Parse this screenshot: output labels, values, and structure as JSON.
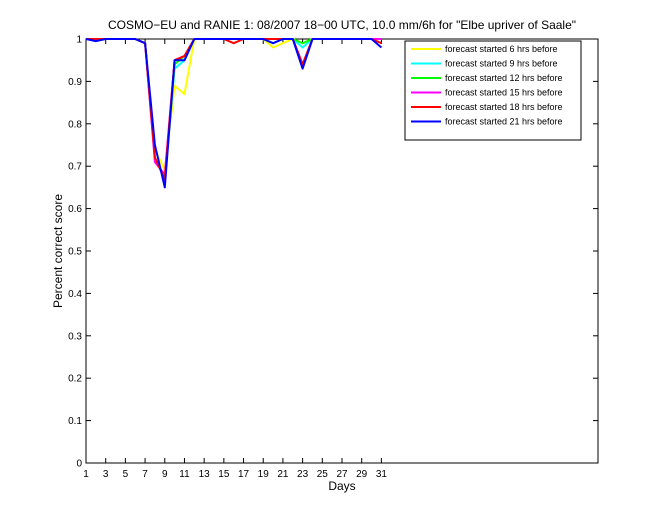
{
  "chart_data": {
    "type": "line",
    "title": "COSMO−EU and RANIE 1: 08/2007 18−00 UTC, 10.0 mm/6h for \"Elbe upriver of Saale\"",
    "xlabel": "Days",
    "ylabel": "Percent correct score",
    "xlim": [
      1,
      53
    ],
    "ylim": [
      0,
      1
    ],
    "xticks": [
      1,
      3,
      5,
      7,
      9,
      11,
      13,
      15,
      17,
      19,
      21,
      23,
      25,
      27,
      29,
      31
    ],
    "yticks": [
      0,
      0.1,
      0.2,
      0.3,
      0.4,
      0.5,
      0.6,
      0.7,
      0.8,
      0.9,
      1
    ],
    "ytick_labels": [
      "0",
      "0.1",
      "0.2",
      "0.3",
      "0.4",
      "0.5",
      "0.6",
      "0.7",
      "0.8",
      "0.9",
      "1"
    ],
    "grid": false,
    "legend_position": "top-right",
    "x": [
      1,
      2,
      3,
      4,
      5,
      6,
      7,
      8,
      9,
      10,
      11,
      12,
      13,
      14,
      15,
      16,
      17,
      18,
      19,
      20,
      21,
      22,
      23,
      24,
      25,
      26,
      27,
      28,
      29,
      30,
      31
    ],
    "series": [
      {
        "name": "forecast started 6 hrs before",
        "color": "#ffff00",
        "values": [
          1,
          1,
          1,
          1,
          1,
          1,
          0.99,
          0.74,
          0.69,
          0.89,
          0.87,
          1,
          1,
          1,
          1,
          1,
          1,
          1,
          1,
          0.98,
          0.99,
          1,
          0.99,
          1,
          1,
          1,
          1,
          1,
          1,
          1,
          1
        ]
      },
      {
        "name": "forecast started 9 hrs before",
        "color": "#00ffff",
        "values": [
          1,
          1,
          1,
          1,
          1,
          1,
          0.99,
          0.72,
          0.67,
          0.93,
          0.95,
          1,
          1,
          1,
          1,
          1,
          1,
          1,
          1,
          0.99,
          1,
          1,
          0.98,
          1,
          1,
          1,
          1,
          1,
          1,
          1,
          1
        ]
      },
      {
        "name": "forecast started 12 hrs before",
        "color": "#00ff00",
        "values": [
          1,
          1,
          1,
          1,
          1,
          1,
          0.99,
          0.72,
          0.67,
          0.94,
          0.96,
          1,
          1,
          1,
          1,
          1,
          1,
          1,
          1,
          1,
          1,
          1,
          0.99,
          1,
          1,
          1,
          1,
          1,
          1,
          1,
          1
        ]
      },
      {
        "name": "forecast started 15 hrs before",
        "color": "#ff00ff",
        "values": [
          1,
          1,
          1,
          1,
          1,
          1,
          0.99,
          0.71,
          0.68,
          0.95,
          0.96,
          1,
          1,
          1,
          1,
          1,
          1,
          1,
          1,
          1,
          1,
          1,
          0.94,
          1,
          1,
          1,
          1,
          1,
          1,
          1,
          1
        ]
      },
      {
        "name": "forecast started 18 hrs before",
        "color": "#ff0000",
        "values": [
          1,
          1,
          1,
          1,
          1,
          1,
          0.99,
          0.72,
          0.67,
          0.95,
          0.96,
          1,
          1,
          1,
          1,
          0.99,
          1,
          1,
          1,
          1,
          1,
          1,
          0.94,
          1,
          1,
          1,
          1,
          1,
          1,
          1,
          0.99
        ]
      },
      {
        "name": "forecast started 21 hrs before",
        "color": "#0000ff",
        "values": [
          1,
          0.995,
          1,
          1,
          1,
          1,
          0.99,
          0.75,
          0.65,
          0.95,
          0.95,
          1,
          1,
          1,
          1,
          1,
          1,
          1,
          1,
          0.99,
          1,
          1,
          0.93,
          1,
          1,
          1,
          1,
          1,
          1,
          1,
          0.98
        ]
      }
    ]
  }
}
